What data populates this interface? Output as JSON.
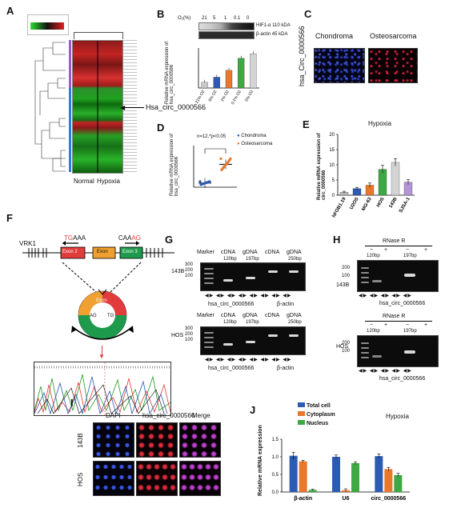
{
  "panels": {
    "A": {
      "letter": "A",
      "columns": [
        "Normal",
        "Hypoxia"
      ],
      "annotation": "Hsa_circ_0000566"
    },
    "B": {
      "letter": "B",
      "o2_label": "O₂(%)",
      "o2_values": [
        "21",
        "5",
        "1",
        "0.1",
        "0"
      ],
      "blot_labels": [
        "HIF1-α",
        "β-actin"
      ],
      "blot_sizes": [
        "110 kDA",
        "45 kDA"
      ],
      "ylabel": "Relative mRNA expression of hsa_circ_0000566",
      "xticks": [
        "21% O2",
        "5% O2",
        "1% O2",
        "0.1% O2",
        "0% O2"
      ]
    },
    "C": {
      "letter": "C",
      "titles": [
        "Chondroma",
        "Osteosarcoma"
      ],
      "ylabel": "hsa_Circ_0000566"
    },
    "D": {
      "letter": "D",
      "stat": "n=12,*p<0.05",
      "legend": [
        "Chondroma",
        "Osteosarcoma"
      ],
      "ylabel": "Relative mRNA expression of hsa_circ_0000566"
    },
    "E": {
      "letter": "E",
      "title": "Hypoxia",
      "ylabel": "Relative mRNA expression of circ_0000566",
      "yticks": [
        "0",
        "5",
        "10",
        "15",
        "20"
      ],
      "categories": [
        "hFOB1.19",
        "U2OS",
        "MG-63",
        "HOS",
        "143B",
        "SJSA-1"
      ]
    },
    "F": {
      "letter": "F",
      "gene": "VRK1",
      "left_seq_red": "TG",
      "left_seq_black": "AAA",
      "right_seq_black": "CAA",
      "right_seq_red": "AG",
      "exons": [
        "Exon 2",
        "Exon",
        "Exon 3"
      ],
      "circle_labels": [
        "Exon",
        "AG",
        "TG"
      ]
    },
    "G": {
      "letter": "G",
      "header": [
        "Marker",
        "cDNA",
        "gDNA",
        "cDNA",
        "gDNA"
      ],
      "sizes": [
        "120bp",
        "197bp",
        "250bp"
      ],
      "ladder": [
        "300",
        "200",
        "100"
      ],
      "rows": [
        "143B",
        "HOS"
      ],
      "bottom": [
        "hsa_circ_0000566",
        "β-actin"
      ]
    },
    "H": {
      "letter": "H",
      "rnase": "RNase R",
      "signs": [
        "−",
        "+",
        "−",
        "+"
      ],
      "sizes": [
        "120bp",
        "197bp"
      ],
      "ladder": [
        "200",
        "100"
      ],
      "rows": [
        "143B",
        "HOS"
      ],
      "bottom": "hsa_circ_0000566"
    },
    "I": {
      "letter": "I",
      "columns": [
        "DAPI",
        "hsa_circ_0000566",
        "Merge"
      ],
      "rows": [
        "143B",
        "HOS"
      ]
    },
    "J": {
      "letter": "J",
      "title": "Hypoxia",
      "ylabel": "Relative mRNA expression",
      "yticks": [
        "0.0",
        "0.5",
        "1.0",
        "1.5"
      ],
      "legend": [
        "Total cell",
        "Cytoplasm",
        "Nucleus"
      ]
    }
  },
  "chart_data": [
    {
      "id": "B",
      "type": "bar",
      "categories": [
        "21% O2",
        "5% O2",
        "1% O2",
        "0.1% O2",
        "0% O2"
      ],
      "values": [
        1.0,
        1.9,
        3.1,
        5.2,
        6.0
      ],
      "colors": [
        "#c8c8c8",
        "#2b5bb3",
        "#e9772c",
        "#3ea843",
        "#d4d4d4"
      ],
      "ylim": [
        0,
        7
      ]
    },
    {
      "id": "D",
      "type": "scatter",
      "categories": [
        "Chondroma",
        "Osteosarcoma"
      ],
      "means": [
        1.0,
        5.5
      ],
      "colors": [
        "#2b5bb3",
        "#e9772c"
      ],
      "ylim": [
        0,
        10
      ]
    },
    {
      "id": "E",
      "type": "bar",
      "categories": [
        "hFOB1.19",
        "U2OS",
        "MG-63",
        "HOS",
        "143B",
        "SJSA-1"
      ],
      "values": [
        1.0,
        2.2,
        3.3,
        8.5,
        10.8,
        4.3
      ],
      "errors": [
        0.3,
        0.4,
        0.7,
        1.3,
        1.2,
        0.8
      ],
      "colors": [
        "#b9b9b9",
        "#2b5bb3",
        "#e9772c",
        "#3ea843",
        "#d4d4d4",
        "#b494d4"
      ],
      "ylim": [
        0,
        20
      ]
    },
    {
      "id": "J",
      "type": "bar",
      "categories": [
        "β-actin",
        "U6",
        "circ_0000566"
      ],
      "series": [
        {
          "name": "Total cell",
          "color": "#2b5bb3",
          "values": [
            1.03,
            1.0,
            1.02
          ],
          "errors": [
            0.1,
            0.05,
            0.06
          ]
        },
        {
          "name": "Cytoplasm",
          "color": "#e9772c",
          "values": [
            0.87,
            0.05,
            0.65
          ],
          "errors": [
            0.03,
            0.04,
            0.05
          ]
        },
        {
          "name": "Nucleus",
          "color": "#3ea843",
          "values": [
            0.06,
            0.82,
            0.48
          ],
          "errors": [
            0.02,
            0.04,
            0.05
          ]
        }
      ],
      "ylim": [
        0,
        1.5
      ]
    }
  ]
}
